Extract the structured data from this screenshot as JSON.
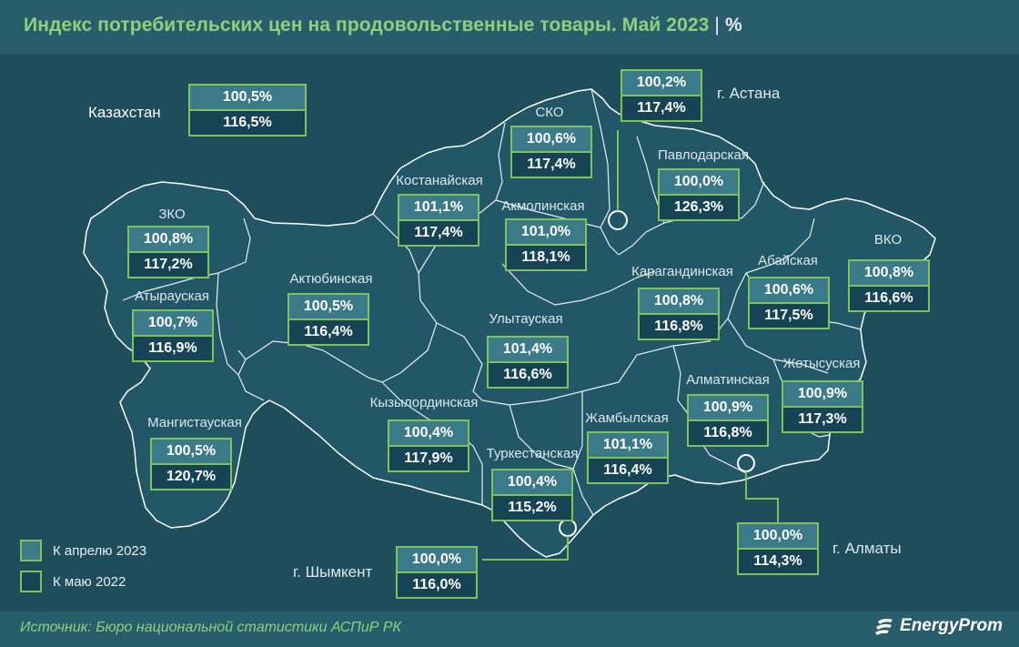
{
  "title": "Индекс потребительских цен на продовольственные товары. Май 2023",
  "title_separator": "|",
  "unit": "%",
  "source": "Источник: Бюро национальной статистики АСПиР РК",
  "brand": "EnergyProm",
  "colors": {
    "background": "#1e4d5c",
    "header": "#2a5d6c",
    "map_fill": "#215766",
    "border_green": "#7fc25a",
    "april_swatch": "#3b7a88",
    "may_swatch": "#164455",
    "title_green": "#8fd07a"
  },
  "legend": [
    {
      "label": "К апрелю 2023",
      "color": "#3b7a88"
    },
    {
      "label": "К маю 2022",
      "color": "#164455"
    }
  ],
  "country": {
    "name": "Казахстан",
    "to_april_2023": "100,5%",
    "to_may_2022": "116,5%"
  },
  "regions": [
    {
      "id": "zko",
      "name": "ЗКО",
      "to_april_2023": "100,8%",
      "to_may_2022": "117,2%"
    },
    {
      "id": "atyrau",
      "name": "Атырауская",
      "to_april_2023": "100,7%",
      "to_may_2022": "116,9%"
    },
    {
      "id": "mangystau",
      "name": "Мангистауская",
      "to_april_2023": "100,5%",
      "to_may_2022": "120,7%"
    },
    {
      "id": "aktobe",
      "name": "Актюбинская",
      "to_april_2023": "100,5%",
      "to_may_2022": "116,4%"
    },
    {
      "id": "kostanay",
      "name": "Костанайская",
      "to_april_2023": "101,1%",
      "to_may_2022": "117,4%"
    },
    {
      "id": "sko",
      "name": "СКО",
      "to_april_2023": "100,6%",
      "to_may_2022": "117,4%"
    },
    {
      "id": "akmola",
      "name": "Акмолинская",
      "to_april_2023": "101,0%",
      "to_may_2022": "118,1%"
    },
    {
      "id": "astana",
      "name": "г. Астана",
      "to_april_2023": "100,2%",
      "to_may_2022": "117,4%"
    },
    {
      "id": "pavlodar",
      "name": "Павлодарская",
      "to_april_2023": "100,0%",
      "to_may_2022": "126,3%"
    },
    {
      "id": "vko",
      "name": "ВКО",
      "to_april_2023": "100,8%",
      "to_may_2022": "116,6%"
    },
    {
      "id": "abai",
      "name": "Абайская",
      "to_april_2023": "100,6%",
      "to_may_2022": "117,5%"
    },
    {
      "id": "karaganda",
      "name": "Карагандинская",
      "to_april_2023": "100,8%",
      "to_may_2022": "116,8%"
    },
    {
      "id": "ulytau",
      "name": "Улытауская",
      "to_april_2023": "101,4%",
      "to_may_2022": "116,6%"
    },
    {
      "id": "kyzylorda",
      "name": "Кызылординская",
      "to_april_2023": "100,4%",
      "to_may_2022": "117,9%"
    },
    {
      "id": "zhambyl",
      "name": "Жамбылская",
      "to_april_2023": "101,1%",
      "to_may_2022": "116,4%"
    },
    {
      "id": "turkestan",
      "name": "Туркестанская",
      "to_april_2023": "100,4%",
      "to_may_2022": "115,2%"
    },
    {
      "id": "almaty_obl",
      "name": "Алматинская",
      "to_april_2023": "100,9%",
      "to_may_2022": "116,8%"
    },
    {
      "id": "zhetysu",
      "name": "Жетысуская",
      "to_april_2023": "100,9%",
      "to_may_2022": "117,3%"
    },
    {
      "id": "almaty_city",
      "name": "г. Алматы",
      "to_april_2023": "100,0%",
      "to_may_2022": "114,3%"
    },
    {
      "id": "shymkent",
      "name": "г. Шымкент",
      "to_april_2023": "100,0%",
      "to_may_2022": "116,0%"
    }
  ]
}
